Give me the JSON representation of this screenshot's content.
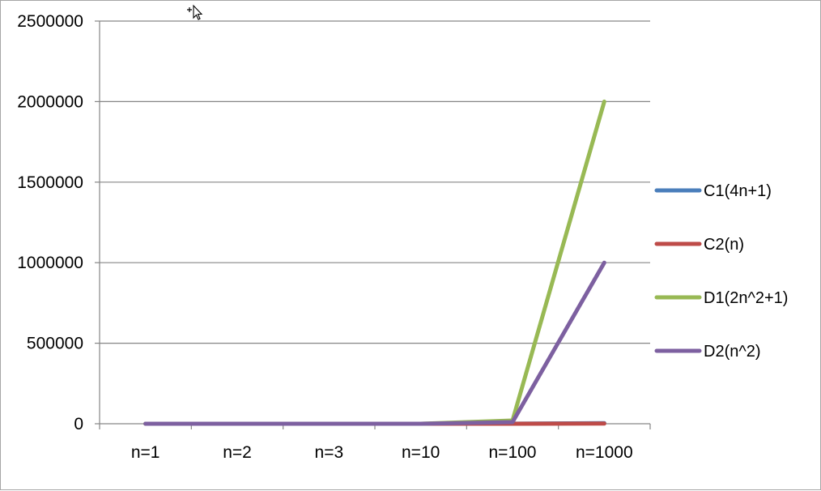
{
  "chart_data": {
    "type": "line",
    "categories": [
      "n=1",
      "n=2",
      "n=3",
      "n=10",
      "n=100",
      "n=1000"
    ],
    "series": [
      {
        "name": "C1(4n+1)",
        "color": "#4a7ebb",
        "values": [
          5,
          9,
          13,
          41,
          401,
          4001
        ]
      },
      {
        "name": "C2(n)",
        "color": "#be4b48",
        "values": [
          1,
          2,
          3,
          10,
          100,
          1000
        ]
      },
      {
        "name": "D1(2n^2+1)",
        "color": "#98b954",
        "values": [
          3,
          9,
          19,
          201,
          20001,
          2000001
        ]
      },
      {
        "name": "D2(n^2)",
        "color": "#7d60a0",
        "values": [
          1,
          4,
          9,
          100,
          10000,
          1000000
        ]
      }
    ],
    "y_ticks": [
      "0",
      "500000",
      "1000000",
      "1500000",
      "2000000",
      "2500000"
    ],
    "ylim": [
      0,
      2500000
    ],
    "grid": true,
    "legend_position": "right",
    "title": "",
    "xlabel": "",
    "ylabel": ""
  }
}
